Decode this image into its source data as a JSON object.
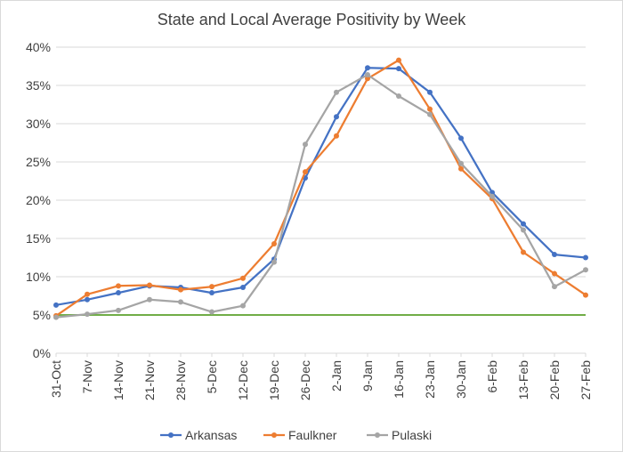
{
  "chart_data": {
    "type": "line",
    "title": "State and Local Average Positivity by Week",
    "xlabel": "",
    "ylabel": "",
    "categories": [
      "31-Oct",
      "7-Nov",
      "14-Nov",
      "21-Nov",
      "28-Nov",
      "5-Dec",
      "12-Dec",
      "19-Dec",
      "26-Dec",
      "2-Jan",
      "9-Jan",
      "16-Jan",
      "23-Jan",
      "30-Jan",
      "6-Feb",
      "13-Feb",
      "20-Feb",
      "27-Feb"
    ],
    "ylim": [
      0,
      40
    ],
    "yticks": [
      0,
      5,
      10,
      15,
      20,
      25,
      30,
      35,
      40
    ],
    "ytick_labels": [
      "0%",
      "5%",
      "10%",
      "15%",
      "20%",
      "25%",
      "30%",
      "35%",
      "40%"
    ],
    "grid": true,
    "legend_position": "bottom",
    "series": [
      {
        "name": "Arkansas",
        "color": "#4472c4",
        "values": [
          6.3,
          7.0,
          7.9,
          8.8,
          8.6,
          7.9,
          8.6,
          12.3,
          22.9,
          30.9,
          37.3,
          37.2,
          34.1,
          28.1,
          21.0,
          16.9,
          12.9,
          12.5
        ]
      },
      {
        "name": "Faulkner",
        "color": "#ed7d31",
        "values": [
          4.9,
          7.7,
          8.8,
          8.9,
          8.3,
          8.7,
          9.8,
          14.3,
          23.7,
          28.4,
          35.9,
          38.3,
          31.9,
          24.1,
          20.2,
          13.2,
          10.4,
          7.6
        ]
      },
      {
        "name": "Pulaski",
        "color": "#a5a5a5",
        "values": [
          4.7,
          5.1,
          5.6,
          7.0,
          6.7,
          5.4,
          6.2,
          11.9,
          27.3,
          34.1,
          36.4,
          33.6,
          31.2,
          24.8,
          20.5,
          16.1,
          8.7,
          10.9
        ]
      }
    ],
    "reference_line": {
      "value": 5,
      "color": "#70ad47"
    }
  }
}
